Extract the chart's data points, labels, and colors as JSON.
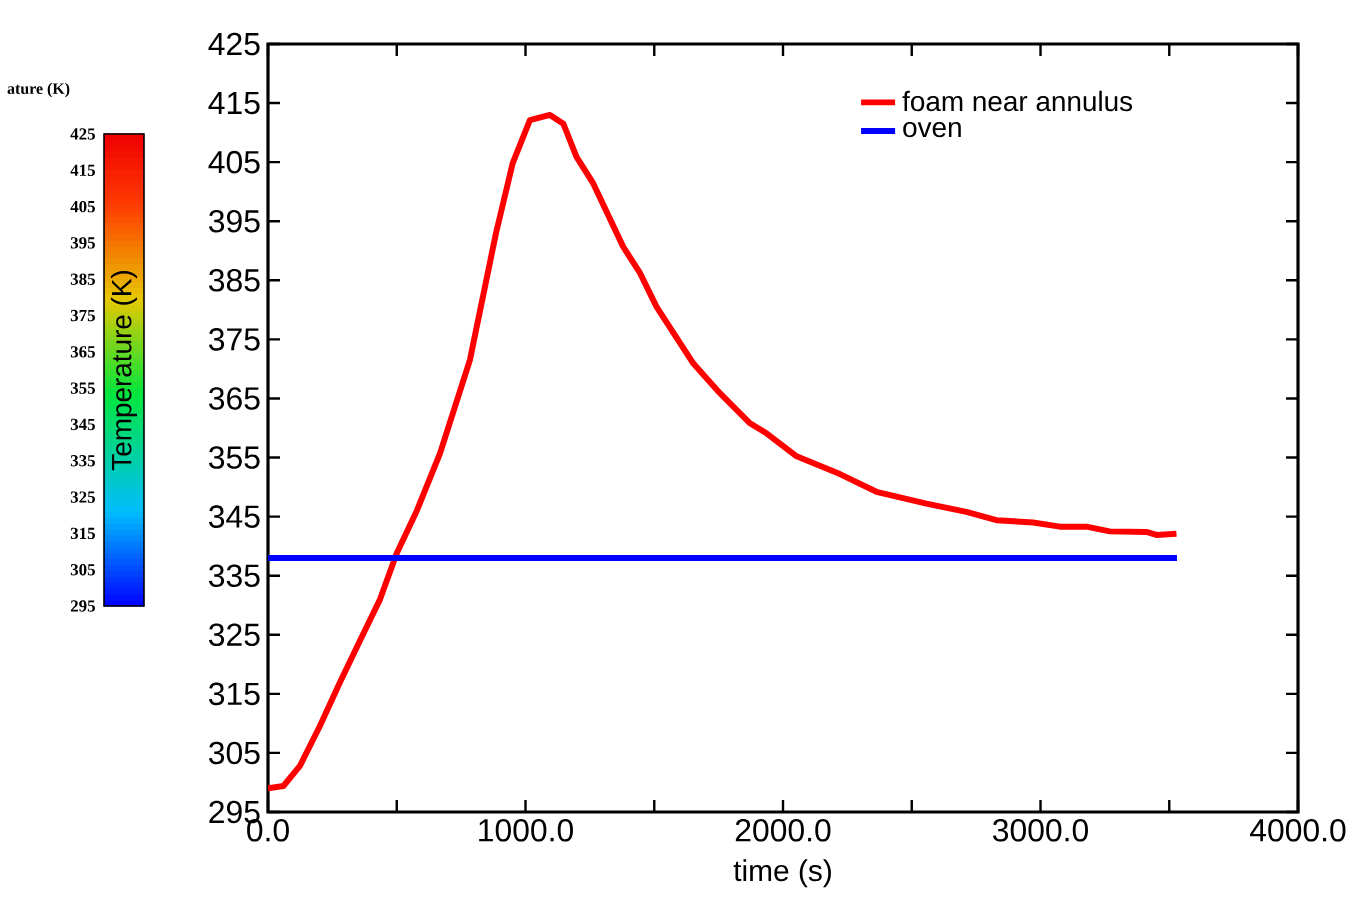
{
  "chart_data": {
    "type": "line",
    "xlabel": "time (s)",
    "xlim": [
      0,
      4000
    ],
    "ylim": [
      295,
      425
    ],
    "xticks": [
      {
        "value": 0,
        "label": "0.0"
      },
      {
        "value": 500,
        "label": null
      },
      {
        "value": 1000,
        "label": "1000.0"
      },
      {
        "value": 1500,
        "label": null
      },
      {
        "value": 2000,
        "label": "2000.0"
      },
      {
        "value": 2500,
        "label": null
      },
      {
        "value": 3000,
        "label": "3000.0"
      },
      {
        "value": 3500,
        "label": null
      },
      {
        "value": 4000,
        "label": "4000.0"
      }
    ],
    "yticks": [
      295,
      305,
      315,
      325,
      335,
      345,
      355,
      365,
      375,
      385,
      395,
      405,
      415,
      425
    ],
    "legend": "top right",
    "marker": "none",
    "line_style": "solid",
    "clabel": "Temperature (K)",
    "clim": [
      295,
      425
    ],
    "cticks": [
      295,
      305,
      315,
      325,
      335,
      345,
      355,
      365,
      375,
      385,
      395,
      405,
      415,
      425
    ],
    "annotations": [
      "ature (K)"
    ],
    "series": [
      {
        "name": "foam near annulus",
        "color": "#ff0000",
        "x": [
          0,
          60,
          124,
          202,
          280,
          357,
          435,
          500,
          578,
          668,
          784,
          885,
          950,
          1017,
          1095,
          1147,
          1198,
          1263,
          1379,
          1445,
          1509,
          1652,
          1755,
          1872,
          1936,
          2053,
          2221,
          2363,
          2557,
          2712,
          2829,
          2971,
          3075,
          3178,
          3269,
          3411,
          3450,
          3528
        ],
        "values": [
          299,
          299.4,
          302.8,
          309.6,
          317,
          324,
          331,
          338.8,
          346,
          355.7,
          371.5,
          392.9,
          404.8,
          412.1,
          413,
          411.5,
          405.9,
          401.4,
          390.7,
          386.2,
          380.5,
          370.9,
          365.9,
          360.8,
          359.1,
          355.2,
          352.2,
          349.2,
          347.2,
          345.8,
          344.4,
          344,
          343.3,
          343.3,
          342.5,
          342.4,
          341.9,
          342.1
        ]
      },
      {
        "name": "oven",
        "color": "#0000ff",
        "x": [
          0,
          3530
        ],
        "values": [
          338,
          338
        ]
      }
    ]
  }
}
